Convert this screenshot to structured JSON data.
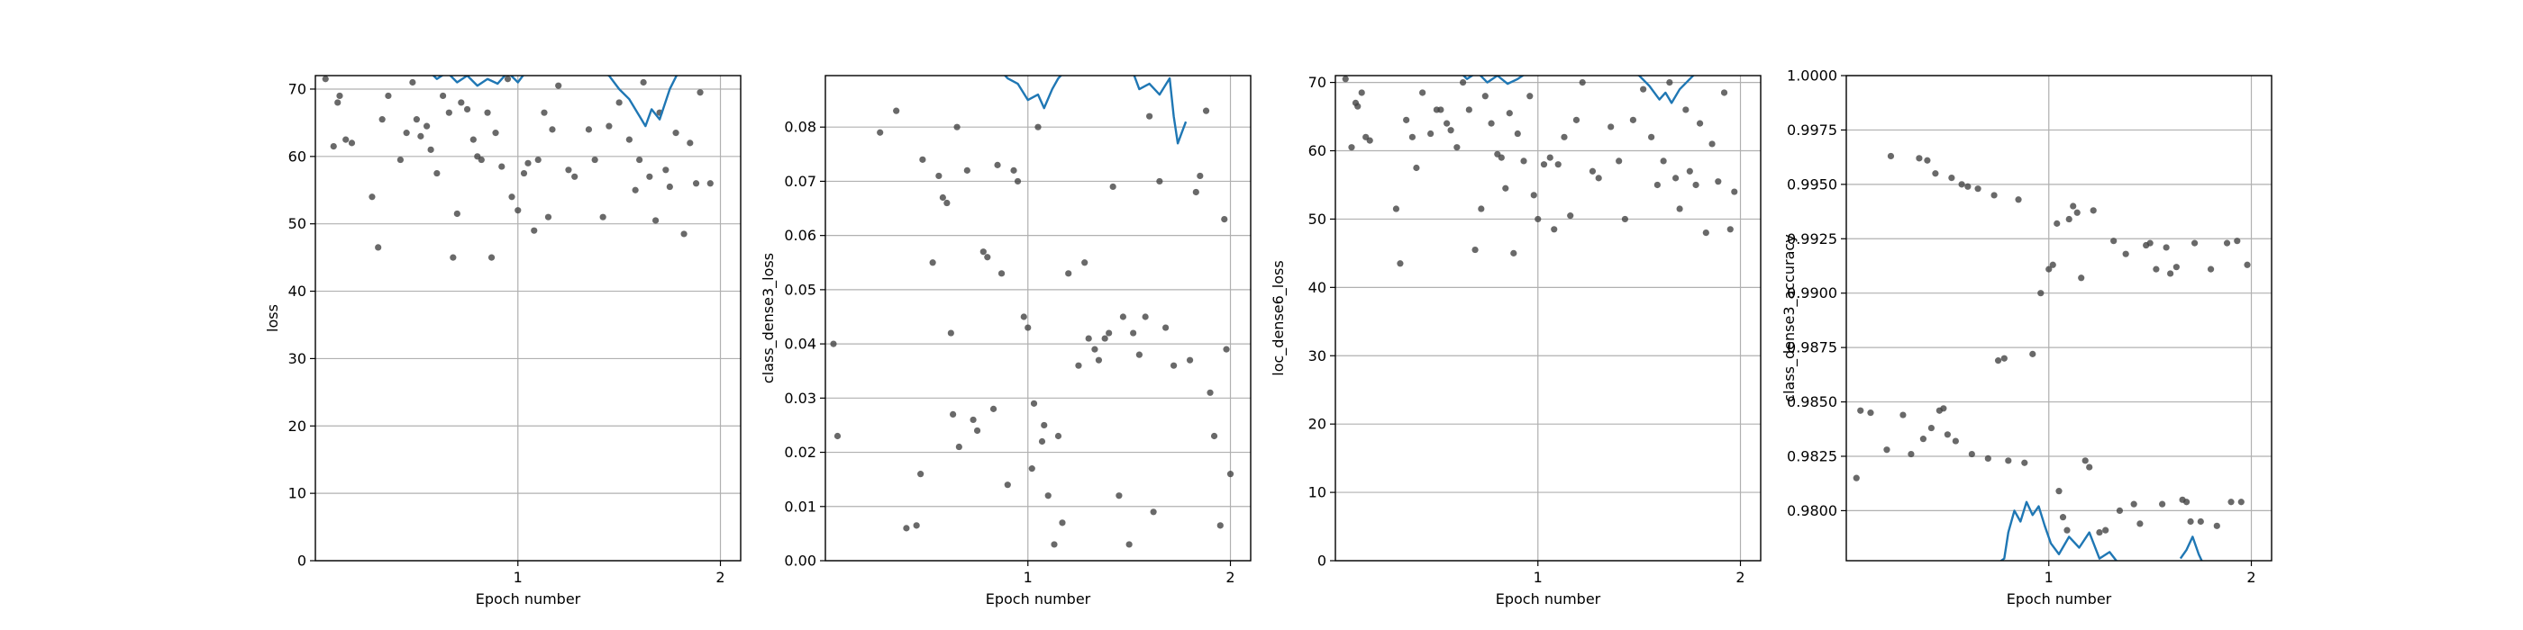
{
  "chart_data": [
    {
      "type": "scatter",
      "xlabel": "Epoch number",
      "ylabel": "loss",
      "xlim": [
        0.0,
        2.1
      ],
      "xticks": [
        1,
        2
      ],
      "ylim": [
        0,
        72
      ],
      "yticks": [
        0,
        10,
        20,
        30,
        40,
        50,
        60,
        70
      ],
      "grid": true,
      "series": [
        {
          "type": "scatter",
          "color": "#444444",
          "x": [
            0.05,
            0.09,
            0.11,
            0.12,
            0.15,
            0.18,
            0.28,
            0.31,
            0.33,
            0.36,
            0.42,
            0.45,
            0.48,
            0.5,
            0.52,
            0.55,
            0.57,
            0.6,
            0.63,
            0.66,
            0.68,
            0.7,
            0.72,
            0.75,
            0.78,
            0.8,
            0.82,
            0.85,
            0.87,
            0.89,
            0.92,
            0.95,
            0.97,
            1.0,
            1.03,
            1.05,
            1.08,
            1.1,
            1.13,
            1.15,
            1.17,
            1.2,
            1.25,
            1.28,
            1.35,
            1.38,
            1.42,
            1.45,
            1.5,
            1.55,
            1.58,
            1.6,
            1.62,
            1.65,
            1.68,
            1.7,
            1.73,
            1.75,
            1.78,
            1.82,
            1.85,
            1.88,
            1.9,
            1.95
          ],
          "values": [
            71.5,
            61.5,
            68,
            69,
            62.5,
            62,
            54,
            46.5,
            65.5,
            69,
            59.5,
            63.5,
            71,
            65.5,
            63,
            64.5,
            61,
            57.5,
            69,
            66.5,
            45,
            51.5,
            68,
            67,
            62.5,
            60,
            59.5,
            66.5,
            45,
            63.5,
            58.5,
            71.5,
            54,
            52,
            57.5,
            59,
            49,
            59.5,
            66.5,
            51,
            64,
            70.5,
            58,
            57,
            64,
            59.5,
            51,
            64.5,
            68,
            62.5,
            55,
            59.5,
            71,
            57,
            50.5,
            66.5,
            58,
            55.5,
            63.5,
            48.5,
            62,
            56,
            69.5,
            56
          ]
        },
        {
          "type": "line",
          "color": "#1f77b4",
          "x": [
            0.55,
            0.6,
            0.65,
            0.7,
            0.75,
            0.8,
            0.85,
            0.9,
            0.95,
            1.0,
            1.05,
            1.3,
            1.45,
            1.5,
            1.55,
            1.6,
            1.63,
            1.66,
            1.7,
            1.75,
            1.8
          ],
          "values": [
            73,
            71.5,
            72.5,
            71,
            72,
            70.5,
            71.5,
            70.8,
            72.5,
            71,
            73,
            74,
            72,
            70,
            68.5,
            66,
            64.5,
            67,
            65.5,
            70,
            73
          ]
        }
      ]
    },
    {
      "type": "scatter",
      "xlabel": "Epoch number",
      "ylabel": "class_dense3_loss",
      "xlim": [
        0.0,
        2.1
      ],
      "xticks": [
        1,
        2
      ],
      "ylim": [
        0,
        0.0895
      ],
      "yticks": [
        {
          "value": 0,
          "label": "0.00"
        },
        0.01,
        0.02,
        0.03,
        0.04,
        0.05,
        0.06,
        0.07,
        0.08
      ],
      "grid": true,
      "series": [
        {
          "type": "scatter",
          "color": "#444444",
          "x": [
            0.04,
            0.06,
            0.27,
            0.35,
            0.4,
            0.45,
            0.47,
            0.48,
            0.53,
            0.56,
            0.58,
            0.6,
            0.62,
            0.63,
            0.65,
            0.66,
            0.7,
            0.73,
            0.75,
            0.78,
            0.8,
            0.83,
            0.85,
            0.87,
            0.9,
            0.93,
            0.95,
            0.98,
            1.0,
            1.02,
            1.03,
            1.05,
            1.07,
            1.08,
            1.1,
            1.13,
            1.15,
            1.17,
            1.2,
            1.25,
            1.28,
            1.3,
            1.33,
            1.35,
            1.38,
            1.4,
            1.42,
            1.45,
            1.47,
            1.5,
            1.52,
            1.55,
            1.58,
            1.6,
            1.62,
            1.65,
            1.68,
            1.72,
            1.8,
            1.83,
            1.85,
            1.88,
            1.9,
            1.92,
            1.95,
            1.97,
            1.98,
            2.0
          ],
          "values": [
            0.04,
            0.023,
            0.079,
            0.083,
            0.006,
            0.0065,
            0.016,
            0.074,
            0.055,
            0.071,
            0.067,
            0.066,
            0.042,
            0.027,
            0.08,
            0.021,
            0.072,
            0.026,
            0.024,
            0.057,
            0.056,
            0.028,
            0.073,
            0.053,
            0.014,
            0.072,
            0.07,
            0.045,
            0.043,
            0.017,
            0.029,
            0.08,
            0.022,
            0.025,
            0.012,
            0.003,
            0.023,
            0.007,
            0.053,
            0.036,
            0.055,
            0.041,
            0.039,
            0.037,
            0.041,
            0.042,
            0.069,
            0.012,
            0.045,
            0.003,
            0.042,
            0.038,
            0.045,
            0.082,
            0.009,
            0.07,
            0.043,
            0.036,
            0.037,
            0.068,
            0.071,
            0.083,
            0.031,
            0.023,
            0.0065,
            0.063,
            0.039,
            0.016
          ]
        },
        {
          "type": "line",
          "color": "#1f77b4",
          "x": [
            0.85,
            0.9,
            0.95,
            1.0,
            1.05,
            1.08,
            1.12,
            1.15,
            1.2,
            1.5,
            1.55,
            1.6,
            1.65,
            1.7,
            1.72,
            1.74,
            1.76,
            1.78
          ],
          "values": [
            0.091,
            0.089,
            0.088,
            0.085,
            0.086,
            0.0835,
            0.087,
            0.089,
            0.091,
            0.092,
            0.087,
            0.088,
            0.086,
            0.089,
            0.082,
            0.077,
            0.079,
            0.081
          ]
        }
      ]
    },
    {
      "type": "scatter",
      "xlabel": "Epoch number",
      "ylabel": "loc_dense6_loss",
      "xlim": [
        0.0,
        2.1
      ],
      "xticks": [
        1,
        2
      ],
      "ylim": [
        0,
        71
      ],
      "yticks": [
        0,
        10,
        20,
        30,
        40,
        50,
        60,
        70
      ],
      "grid": true,
      "series": [
        {
          "type": "scatter",
          "color": "#444444",
          "x": [
            0.05,
            0.08,
            0.1,
            0.11,
            0.13,
            0.15,
            0.17,
            0.3,
            0.32,
            0.35,
            0.38,
            0.4,
            0.43,
            0.47,
            0.5,
            0.52,
            0.55,
            0.57,
            0.6,
            0.63,
            0.66,
            0.69,
            0.72,
            0.74,
            0.77,
            0.8,
            0.82,
            0.84,
            0.86,
            0.88,
            0.9,
            0.93,
            0.96,
            0.98,
            1.0,
            1.03,
            1.06,
            1.08,
            1.1,
            1.13,
            1.16,
            1.19,
            1.22,
            1.27,
            1.3,
            1.36,
            1.4,
            1.43,
            1.47,
            1.52,
            1.56,
            1.59,
            1.62,
            1.65,
            1.68,
            1.7,
            1.73,
            1.75,
            1.78,
            1.8,
            1.83,
            1.86,
            1.89,
            1.92,
            1.95,
            1.97
          ],
          "values": [
            70.5,
            60.5,
            67,
            66.5,
            68.5,
            62,
            61.5,
            51.5,
            43.5,
            64.5,
            62,
            57.5,
            68.5,
            62.5,
            66,
            66,
            64,
            63,
            60.5,
            70,
            66,
            45.5,
            51.5,
            68,
            64,
            59.5,
            59,
            54.5,
            65.5,
            45,
            62.5,
            58.5,
            68,
            53.5,
            50,
            58,
            59,
            48.5,
            58,
            62,
            50.5,
            64.5,
            70,
            57,
            56,
            63.5,
            58.5,
            50,
            64.5,
            69,
            62,
            55,
            58.5,
            70,
            56,
            51.5,
            66,
            57,
            55,
            64,
            48,
            61,
            55.5,
            68.5,
            48.5,
            54
          ]
        },
        {
          "type": "line",
          "color": "#1f77b4",
          "x": [
            0.6,
            0.65,
            0.7,
            0.75,
            0.8,
            0.85,
            0.9,
            0.95,
            1.0,
            1.4,
            1.5,
            1.55,
            1.6,
            1.63,
            1.66,
            1.7,
            1.75,
            1.8
          ],
          "values": [
            72,
            70.5,
            71.5,
            70,
            71,
            69.8,
            70.5,
            71.5,
            72,
            72.5,
            71,
            69.5,
            67.5,
            68.5,
            67,
            69,
            70.5,
            72
          ]
        }
      ]
    },
    {
      "type": "scatter",
      "xlabel": "Epoch number",
      "ylabel": "class_dense3_accuracy",
      "xlim": [
        0.0,
        2.1
      ],
      "xticks": [
        1,
        2
      ],
      "ylim": [
        0.9777,
        1.0
      ],
      "yticks": [
        {
          "value": 0.98,
          "label": "0.9800"
        },
        0.9825,
        {
          "value": 0.985,
          "label": "0.9850"
        },
        0.9875,
        {
          "value": 0.99,
          "label": "0.9900"
        },
        0.9925,
        {
          "value": 0.995,
          "label": "0.9950"
        },
        0.9975,
        {
          "value": 1,
          "label": "1.0000"
        }
      ],
      "grid": true,
      "series": [
        {
          "type": "scatter",
          "color": "#444444",
          "x": [
            0.05,
            0.07,
            0.12,
            0.2,
            0.22,
            0.28,
            0.32,
            0.36,
            0.38,
            0.4,
            0.42,
            0.44,
            0.46,
            0.48,
            0.5,
            0.52,
            0.54,
            0.57,
            0.6,
            0.62,
            0.65,
            0.7,
            0.73,
            0.75,
            0.78,
            0.8,
            0.85,
            0.88,
            0.92,
            0.96,
            1.0,
            1.02,
            1.04,
            1.05,
            1.07,
            1.09,
            1.1,
            1.12,
            1.14,
            1.16,
            1.18,
            1.2,
            1.22,
            1.25,
            1.28,
            1.32,
            1.35,
            1.38,
            1.42,
            1.45,
            1.48,
            1.5,
            1.53,
            1.56,
            1.58,
            1.6,
            1.63,
            1.66,
            1.68,
            1.7,
            1.72,
            1.75,
            1.8,
            1.83,
            1.88,
            1.9,
            1.93,
            1.95,
            1.98
          ],
          "values": [
            0.9815,
            0.9846,
            0.9845,
            0.9828,
            0.9963,
            0.9844,
            0.9826,
            0.9962,
            0.9833,
            0.9961,
            0.9838,
            0.9955,
            0.9846,
            0.9847,
            0.9835,
            0.9953,
            0.9832,
            0.995,
            0.9949,
            0.9826,
            0.9948,
            0.9824,
            0.9945,
            0.9869,
            0.987,
            0.9823,
            0.9943,
            0.9822,
            0.9872,
            0.99,
            0.9911,
            0.9913,
            0.9932,
            0.9809,
            0.9797,
            0.9791,
            0.9934,
            0.994,
            0.9937,
            0.9907,
            0.9823,
            0.982,
            0.9938,
            0.979,
            0.9791,
            0.9924,
            0.98,
            0.9918,
            0.9803,
            0.9794,
            0.9922,
            0.9923,
            0.9911,
            0.9803,
            0.9921,
            0.9909,
            0.9912,
            0.9805,
            0.9804,
            0.9795,
            0.9923,
            0.9795,
            0.9911,
            0.9793,
            0.9923,
            0.9804,
            0.9924,
            0.9804,
            0.9913
          ]
        },
        {
          "type": "line",
          "color": "#1f77b4",
          "x": [
            0.75,
            0.78,
            0.8,
            0.83,
            0.86,
            0.89,
            0.92,
            0.95,
            0.98,
            1.01,
            1.05,
            1.1,
            1.15,
            1.2,
            1.25,
            1.3,
            1.35,
            1.6,
            1.65,
            1.68,
            1.71,
            1.74,
            1.76
          ],
          "values": [
            0.9776,
            0.9778,
            0.979,
            0.98,
            0.9795,
            0.9804,
            0.9798,
            0.9802,
            0.9793,
            0.9785,
            0.978,
            0.9788,
            0.9783,
            0.979,
            0.9778,
            0.9781,
            0.9775,
            null,
            0.9778,
            0.9782,
            0.9788,
            0.978,
            0.9776
          ]
        }
      ]
    }
  ]
}
